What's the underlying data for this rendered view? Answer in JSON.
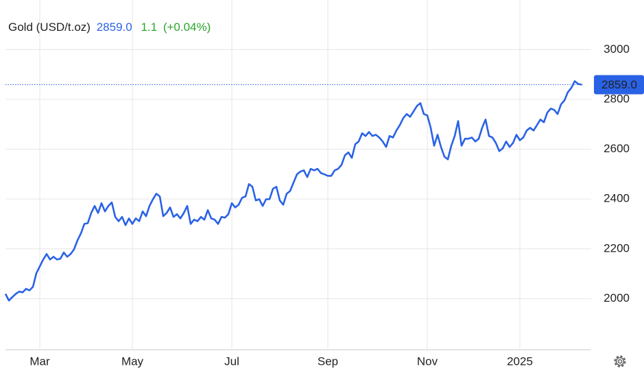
{
  "chart_data": {
    "type": "line",
    "name": "Gold (USD/t.oz)",
    "change": "1.1",
    "change_pct": "(+0.04%)",
    "price_line": {
      "value": 2859,
      "label": "2859.0"
    },
    "categories": [
      null,
      null,
      null,
      null,
      null,
      null,
      null,
      null,
      null,
      null,
      "Mar",
      null,
      null,
      null,
      null,
      null,
      null,
      null,
      null,
      null,
      null,
      null,
      null,
      null,
      null,
      null,
      null,
      null,
      null,
      null,
      null,
      null,
      null,
      null,
      null,
      null,
      null,
      "May",
      null,
      null,
      null,
      null,
      null,
      null,
      null,
      null,
      null,
      null,
      null,
      null,
      null,
      null,
      null,
      null,
      null,
      null,
      null,
      null,
      null,
      null,
      null,
      null,
      null,
      null,
      null,
      null,
      "Jul",
      null,
      null,
      null,
      null,
      null,
      null,
      null,
      null,
      null,
      null,
      null,
      null,
      null,
      null,
      null,
      null,
      null,
      null,
      null,
      null,
      null,
      null,
      null,
      null,
      null,
      null,
      null,
      "Sep",
      null,
      null,
      null,
      null,
      null,
      null,
      null,
      null,
      null,
      null,
      null,
      null,
      null,
      null,
      null,
      null,
      null,
      null,
      null,
      null,
      null,
      null,
      null,
      null,
      null,
      null,
      null,
      null,
      "Nov",
      null,
      null,
      null,
      null,
      null,
      null,
      null,
      null,
      null,
      null,
      null,
      null,
      null,
      null,
      null,
      null,
      null,
      null,
      null,
      null,
      null,
      null,
      null,
      null,
      null,
      null,
      "2025",
      null,
      null,
      null,
      null,
      null,
      null,
      null,
      null,
      null,
      null,
      null,
      null,
      null,
      null,
      null,
      null,
      null,
      null
    ],
    "series": [
      {
        "name": "Gold",
        "color": "#2a62e6",
        "values": [
          2019,
          1992,
          2006,
          2019,
          2028,
          2025,
          2039,
          2033,
          2047,
          2102,
          2129,
          2157,
          2179,
          2157,
          2168,
          2157,
          2160,
          2185,
          2168,
          2179,
          2198,
          2234,
          2262,
          2300,
          2303,
          2344,
          2372,
          2344,
          2383,
          2350,
          2372,
          2386,
          2328,
          2311,
          2328,
          2295,
          2322,
          2300,
          2322,
          2311,
          2350,
          2331,
          2372,
          2399,
          2421,
          2410,
          2331,
          2344,
          2366,
          2328,
          2339,
          2322,
          2344,
          2372,
          2300,
          2317,
          2311,
          2328,
          2317,
          2355,
          2322,
          2317,
          2300,
          2328,
          2325,
          2339,
          2383,
          2366,
          2377,
          2405,
          2410,
          2460,
          2449,
          2394,
          2399,
          2372,
          2399,
          2399,
          2441,
          2449,
          2394,
          2377,
          2421,
          2432,
          2466,
          2499,
          2510,
          2515,
          2488,
          2521,
          2515,
          2521,
          2504,
          2499,
          2493,
          2493,
          2515,
          2521,
          2537,
          2576,
          2587,
          2565,
          2620,
          2631,
          2664,
          2653,
          2669,
          2653,
          2658,
          2647,
          2631,
          2609,
          2653,
          2647,
          2675,
          2697,
          2725,
          2741,
          2730,
          2752,
          2774,
          2785,
          2741,
          2736,
          2686,
          2614,
          2658,
          2609,
          2570,
          2559,
          2614,
          2653,
          2713,
          2614,
          2642,
          2642,
          2647,
          2631,
          2642,
          2686,
          2719,
          2653,
          2647,
          2625,
          2592,
          2603,
          2631,
          2609,
          2625,
          2658,
          2636,
          2647,
          2675,
          2686,
          2675,
          2697,
          2719,
          2708,
          2747,
          2763,
          2758,
          2741,
          2780,
          2796,
          2829,
          2846,
          2873,
          2862,
          2859
        ]
      }
    ],
    "ylim": [
      1800,
      3100
    ],
    "yticks": [
      2000,
      2200,
      2400,
      2600,
      2800,
      3000
    ],
    "grid": true,
    "change_color": "#2aa52a"
  }
}
